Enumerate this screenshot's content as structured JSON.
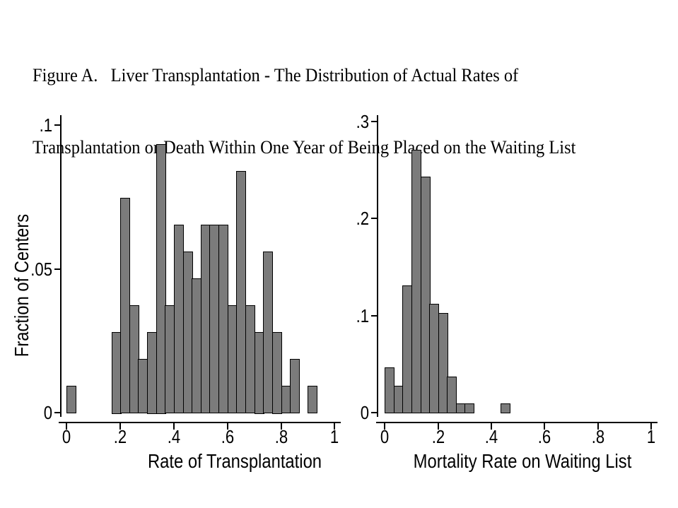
{
  "page": {
    "background": "#ffffff"
  },
  "title": {
    "line1": "Figure A.   Liver Transplantation - The Distribution of Actual Rates of",
    "line2": "Transplantation or Death Within One Year of Being Placed on the Waiting List"
  },
  "colors": {
    "bar_fill": "#7b7b7b",
    "bar_border": "#000000",
    "axis": "#000000",
    "text": "#000000"
  },
  "chart_data": [
    {
      "type": "bar",
      "subtype": "histogram",
      "xlabel": "Rate of Transplantation",
      "ylabel": "Fraction of Centers",
      "xlim": [
        0,
        1
      ],
      "ylim": [
        0,
        0.1
      ],
      "grid": false,
      "legend": false,
      "bin_width": 0.0333,
      "xticks": [
        {
          "value": 0,
          "label": "0"
        },
        {
          "value": 0.2,
          "label": ".2"
        },
        {
          "value": 0.4,
          "label": ".4"
        },
        {
          "value": 0.6,
          "label": ".6"
        },
        {
          "value": 0.8,
          "label": ".8"
        },
        {
          "value": 1,
          "label": "1"
        }
      ],
      "yticks": [
        {
          "value": 0,
          "label": "0"
        },
        {
          "value": 0.05,
          "label": ".05"
        },
        {
          "value": 0.1,
          "label": ".1"
        }
      ],
      "bars": [
        {
          "x_start": 0,
          "fraction": 0.0093
        },
        {
          "x_start": 0.1667,
          "fraction": 0.028
        },
        {
          "x_start": 0.2,
          "fraction": 0.0748
        },
        {
          "x_start": 0.2333,
          "fraction": 0.0374
        },
        {
          "x_start": 0.2667,
          "fraction": 0.0187
        },
        {
          "x_start": 0.3,
          "fraction": 0.028
        },
        {
          "x_start": 0.3333,
          "fraction": 0.0935
        },
        {
          "x_start": 0.3667,
          "fraction": 0.0374
        },
        {
          "x_start": 0.4,
          "fraction": 0.0654
        },
        {
          "x_start": 0.4333,
          "fraction": 0.0561
        },
        {
          "x_start": 0.4667,
          "fraction": 0.0467
        },
        {
          "x_start": 0.5,
          "fraction": 0.0654
        },
        {
          "x_start": 0.5333,
          "fraction": 0.0654
        },
        {
          "x_start": 0.5667,
          "fraction": 0.0654
        },
        {
          "x_start": 0.6,
          "fraction": 0.0374
        },
        {
          "x_start": 0.6333,
          "fraction": 0.0841
        },
        {
          "x_start": 0.6667,
          "fraction": 0.0374
        },
        {
          "x_start": 0.7,
          "fraction": 0.028
        },
        {
          "x_start": 0.7333,
          "fraction": 0.0561
        },
        {
          "x_start": 0.7667,
          "fraction": 0.028
        },
        {
          "x_start": 0.8,
          "fraction": 0.0093
        },
        {
          "x_start": 0.8333,
          "fraction": 0.0187
        },
        {
          "x_start": 0.9,
          "fraction": 0.0093
        }
      ]
    },
    {
      "type": "bar",
      "subtype": "histogram",
      "xlabel": "Mortality Rate on Waiting List",
      "ylabel": "",
      "xlim": [
        0,
        1
      ],
      "ylim": [
        0,
        0.3
      ],
      "grid": false,
      "legend": false,
      "bin_width": 0.0333,
      "xticks": [
        {
          "value": 0,
          "label": "0"
        },
        {
          "value": 0.2,
          "label": ".2"
        },
        {
          "value": 0.4,
          "label": ".4"
        },
        {
          "value": 0.6,
          "label": ".6"
        },
        {
          "value": 0.8,
          "label": ".8"
        },
        {
          "value": 1,
          "label": "1"
        }
      ],
      "yticks": [
        {
          "value": 0,
          "label": "0"
        },
        {
          "value": 0.1,
          "label": ".1"
        },
        {
          "value": 0.2,
          "label": ".2"
        },
        {
          "value": 0.3,
          "label": ".3"
        }
      ],
      "bars": [
        {
          "x_start": 0,
          "fraction": 0.0467
        },
        {
          "x_start": 0.0333,
          "fraction": 0.028
        },
        {
          "x_start": 0.0667,
          "fraction": 0.1308
        },
        {
          "x_start": 0.1,
          "fraction": 0.271
        },
        {
          "x_start": 0.1333,
          "fraction": 0.243
        },
        {
          "x_start": 0.1667,
          "fraction": 0.1121
        },
        {
          "x_start": 0.2,
          "fraction": 0.1028
        },
        {
          "x_start": 0.2333,
          "fraction": 0.0374
        },
        {
          "x_start": 0.2667,
          "fraction": 0.0093
        },
        {
          "x_start": 0.3,
          "fraction": 0.0093
        },
        {
          "x_start": 0.4333,
          "fraction": 0.0093
        }
      ]
    }
  ]
}
